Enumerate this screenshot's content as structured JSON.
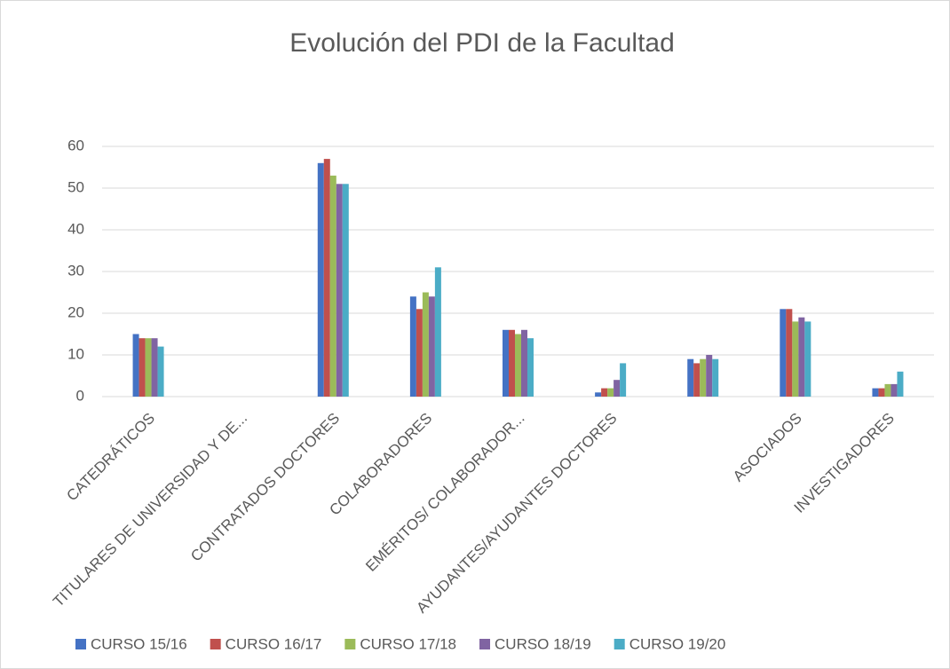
{
  "chart_data": {
    "type": "bar",
    "title": "Evolución del PDI de la Facultad",
    "categories": [
      "CATEDRÁTICOS",
      "TITULARES DE UNIVERSIDAD Y DE...",
      "CONTRATADOS DOCTORES",
      "COLABORADORES",
      "EMÉRITOS/ COLABORADOR...",
      "AYUDANTES/AYUDANTES DOCTORES",
      null,
      "ASOCIADOS",
      "INVESTIGADORES"
    ],
    "series": [
      {
        "name": "CURSO 15/16",
        "color": "#4472c4",
        "values": [
          15,
          null,
          56,
          24,
          16,
          1,
          9,
          21,
          2
        ]
      },
      {
        "name": "CURSO 16/17",
        "color": "#c0504d",
        "values": [
          14,
          null,
          57,
          21,
          16,
          2,
          8,
          21,
          2
        ]
      },
      {
        "name": "CURSO 17/18",
        "color": "#9bbb59",
        "values": [
          14,
          null,
          53,
          25,
          15,
          2,
          9,
          18,
          3
        ]
      },
      {
        "name": "CURSO 18/19",
        "color": "#8064a2",
        "values": [
          14,
          null,
          51,
          24,
          16,
          4,
          10,
          19,
          3
        ]
      },
      {
        "name": "CURSO 19/20",
        "color": "#4bacc6",
        "values": [
          12,
          null,
          51,
          31,
          14,
          8,
          9,
          18,
          6
        ]
      }
    ],
    "ylim": [
      0,
      60
    ],
    "yticks": [
      0,
      10,
      20,
      30,
      40,
      50,
      60
    ],
    "grid": true,
    "legend": "bottom"
  }
}
